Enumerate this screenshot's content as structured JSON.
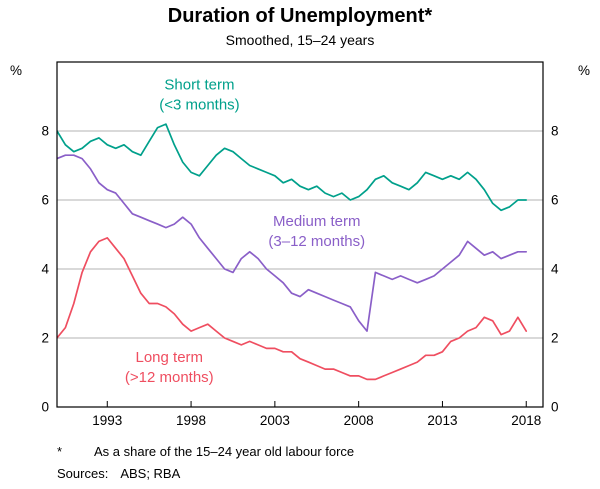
{
  "header": {
    "title": "Duration of Unemployment*",
    "subtitle": "Smoothed, 15–24 years"
  },
  "footnotes": {
    "marker": "*",
    "note": "As a share of the 15–24 year old labour force",
    "sources_label": "Sources:",
    "sources": "ABS; RBA"
  },
  "chart_data": {
    "type": "line",
    "title": "Duration of Unemployment*",
    "subtitle": "Smoothed, 15–24 years",
    "unit": "%",
    "xlim": [
      1990,
      2019
    ],
    "ylim": [
      0,
      10
    ],
    "yticks": [
      0,
      2,
      4,
      6,
      8
    ],
    "ygrid": [
      2,
      4,
      6,
      8
    ],
    "xticks": [
      1993,
      1998,
      2003,
      2008,
      2013,
      2018
    ],
    "x_start": 1990,
    "x_step": 0.5,
    "series": [
      {
        "id": "short-term",
        "name": "Short term (<3 months)",
        "color": "#00a08b",
        "values": [
          8.0,
          7.6,
          7.4,
          7.5,
          7.7,
          7.8,
          7.6,
          7.5,
          7.6,
          7.4,
          7.3,
          7.7,
          8.1,
          8.2,
          7.6,
          7.1,
          6.8,
          6.7,
          7.0,
          7.3,
          7.5,
          7.4,
          7.2,
          7.0,
          6.9,
          6.8,
          6.7,
          6.5,
          6.6,
          6.4,
          6.3,
          6.4,
          6.2,
          6.1,
          6.2,
          6.0,
          6.1,
          6.3,
          6.6,
          6.7,
          6.5,
          6.4,
          6.3,
          6.5,
          6.8,
          6.7,
          6.6,
          6.7,
          6.6,
          6.8,
          6.6,
          6.3,
          5.9,
          5.7,
          5.8,
          6.0,
          6.0
        ]
      },
      {
        "id": "medium-term",
        "name": "Medium term (3–12 months)",
        "color": "#8a5fc8",
        "values": [
          7.2,
          7.3,
          7.3,
          7.2,
          6.9,
          6.5,
          6.3,
          6.2,
          5.9,
          5.6,
          5.5,
          5.4,
          5.3,
          5.2,
          5.3,
          5.5,
          5.3,
          4.9,
          4.6,
          4.3,
          4.0,
          3.9,
          4.3,
          4.5,
          4.3,
          4.0,
          3.8,
          3.6,
          3.3,
          3.2,
          3.4,
          3.3,
          3.2,
          3.1,
          3.0,
          2.9,
          2.5,
          2.2,
          3.9,
          3.8,
          3.7,
          3.8,
          3.7,
          3.6,
          3.7,
          3.8,
          4.0,
          4.2,
          4.4,
          4.8,
          4.6,
          4.4,
          4.5,
          4.3,
          4.4,
          4.5,
          4.5
        ]
      },
      {
        "id": "long-term",
        "name": "Long term (>12 months)",
        "color": "#ef4e60",
        "values": [
          2.0,
          2.3,
          3.0,
          3.9,
          4.5,
          4.8,
          4.9,
          4.6,
          4.3,
          3.8,
          3.3,
          3.0,
          3.0,
          2.9,
          2.7,
          2.4,
          2.2,
          2.3,
          2.4,
          2.2,
          2.0,
          1.9,
          1.8,
          1.9,
          1.8,
          1.7,
          1.7,
          1.6,
          1.6,
          1.4,
          1.3,
          1.2,
          1.1,
          1.1,
          1.0,
          0.9,
          0.9,
          0.8,
          0.8,
          0.9,
          1.0,
          1.1,
          1.2,
          1.3,
          1.5,
          1.5,
          1.6,
          1.9,
          2.0,
          2.2,
          2.3,
          2.6,
          2.5,
          2.1,
          2.2,
          2.6,
          2.2
        ]
      }
    ],
    "annotations": [
      {
        "id": "short-term",
        "lines": [
          "Short term",
          "(<3 months)"
        ],
        "x": 1998.5,
        "y": 9.0,
        "color": "#00a08b"
      },
      {
        "id": "medium-term",
        "lines": [
          "Medium term",
          "(3–12 months)"
        ],
        "x": 2005.5,
        "y": 5.05,
        "color": "#8a5fc8"
      },
      {
        "id": "long-term",
        "lines": [
          "Long term",
          "(>12 months)"
        ],
        "x": 1996.7,
        "y": 1.1,
        "color": "#ef4e60"
      }
    ],
    "legend_position": "in-plot-labels",
    "grid": "horizontal-only"
  }
}
